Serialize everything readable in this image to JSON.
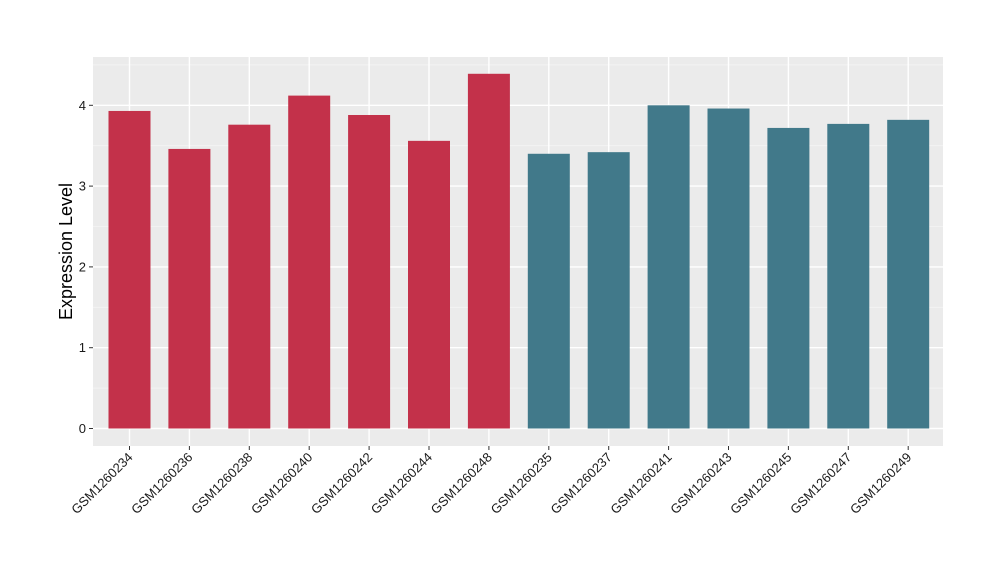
{
  "chart_data": {
    "type": "bar",
    "title": "",
    "xlabel": "",
    "ylabel": "Expression Level",
    "ylim": [
      0,
      4.6
    ],
    "yticks": [
      0,
      1,
      2,
      3,
      4
    ],
    "grid": true,
    "panel_background": "#ebebeb",
    "categories": [
      "GSM1260234",
      "GSM1260236",
      "GSM1260238",
      "GSM1260240",
      "GSM1260242",
      "GSM1260244",
      "GSM1260248",
      "GSM1260235",
      "GSM1260237",
      "GSM1260241",
      "GSM1260243",
      "GSM1260245",
      "GSM1260247",
      "GSM1260249"
    ],
    "values": [
      3.93,
      3.46,
      3.76,
      4.12,
      3.88,
      3.56,
      4.39,
      3.4,
      3.42,
      4.0,
      3.96,
      3.72,
      3.77,
      3.82
    ],
    "group_colors": [
      "#c3314a",
      "#c3314a",
      "#c3314a",
      "#c3314a",
      "#c3314a",
      "#c3314a",
      "#c3314a",
      "#41798a",
      "#41798a",
      "#41798a",
      "#41798a",
      "#41798a",
      "#41798a",
      "#41798a"
    ]
  }
}
